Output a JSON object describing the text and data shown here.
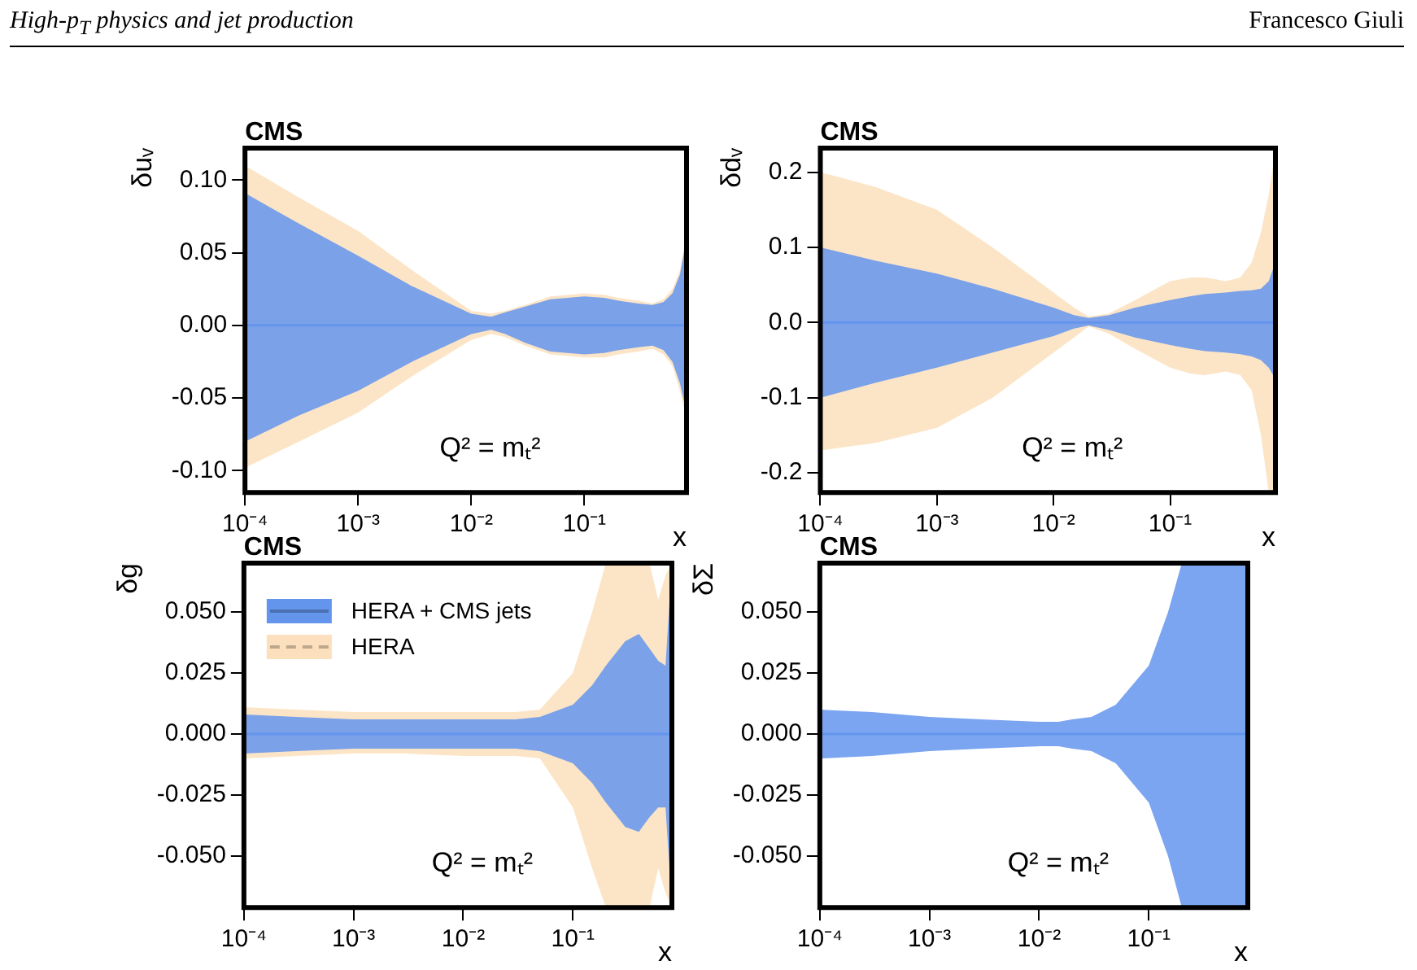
{
  "chart_data": [
    {
      "type": "line",
      "title": "CMS",
      "ylabel": "δuᵥ",
      "xlabel": "x",
      "log": "x",
      "legend": false,
      "line_style": "solid",
      "marker": "none",
      "annotations": [
        "High-p$_{T}$ physics and jet production",
        "Francesco Giuli",
        "Q² = mₜ²"
      ],
      "xlim": [
        0.0001,
        0.8
      ],
      "xticks": [
        {
          "value": 0.0001,
          "label": "10⁻⁴"
        },
        {
          "value": 0.001,
          "label": "10⁻³"
        },
        {
          "value": 0.01,
          "label": "10⁻²"
        },
        {
          "value": 0.1,
          "label": "10⁻¹"
        }
      ],
      "ylim": [
        -0.115,
        0.122
      ],
      "yticks": [
        {
          "value": -0.1,
          "label": "-0.10"
        },
        {
          "value": -0.05,
          "label": "-0.05"
        },
        {
          "value": 0,
          "label": "0.00"
        },
        {
          "value": 0.05,
          "label": "0.05"
        },
        {
          "value": 0.1,
          "label": "0.10"
        }
      ],
      "x": [
        0.0001,
        0.0003,
        0.001,
        0.003,
        0.01,
        0.015,
        0.02,
        0.03,
        0.05,
        0.1,
        0.15,
        0.2,
        0.3,
        0.4,
        0.5,
        0.6,
        0.7,
        0.8
      ],
      "series": [
        {
          "color": "#6495ed",
          "values": [
            0,
            0,
            0,
            0,
            0,
            0,
            0,
            0,
            0,
            0,
            0,
            0,
            0,
            0,
            0,
            0,
            0,
            0
          ],
          "upper": [
            0.091,
            0.07,
            0.048,
            0.027,
            0.008,
            0.006,
            0.009,
            0.013,
            0.018,
            0.02,
            0.019,
            0.017,
            0.015,
            0.014,
            0.016,
            0.022,
            0.035,
            0.06
          ],
          "lower": [
            -0.08,
            -0.062,
            -0.045,
            -0.025,
            -0.006,
            -0.003,
            -0.006,
            -0.012,
            -0.018,
            -0.02,
            -0.019,
            -0.017,
            -0.015,
            -0.014,
            -0.017,
            -0.025,
            -0.04,
            -0.06
          ]
        },
        {
          "color": "#fce0bd",
          "line_style": "dashed",
          "values": [
            null,
            null,
            null,
            null,
            null,
            null,
            null,
            null,
            null,
            null,
            null,
            null,
            null,
            null,
            null,
            null,
            null,
            null
          ],
          "upper": [
            0.11,
            0.088,
            0.065,
            0.038,
            0.01,
            0.008,
            0.01,
            0.014,
            0.02,
            0.022,
            0.021,
            0.019,
            0.017,
            0.015,
            0.018,
            0.025,
            0.038,
            0.062
          ],
          "lower": [
            -0.098,
            -0.08,
            -0.06,
            -0.035,
            -0.01,
            -0.006,
            -0.008,
            -0.014,
            -0.02,
            -0.022,
            -0.022,
            -0.02,
            -0.018,
            -0.016,
            -0.02,
            -0.028,
            -0.045,
            -0.065
          ]
        }
      ]
    },
    {
      "type": "line",
      "title": "CMS",
      "ylabel": "δdᵥ",
      "xlabel": "x",
      "log": "x",
      "legend": false,
      "line_style": "solid",
      "marker": "none",
      "annotations": [
        "Q² = mₜ²"
      ],
      "xlim": [
        0.0001,
        0.8
      ],
      "xticks": [
        {
          "value": 0.0001,
          "label": "10⁻⁴"
        },
        {
          "value": 0.001,
          "label": "10⁻³"
        },
        {
          "value": 0.01,
          "label": "10⁻²"
        },
        {
          "value": 0.1,
          "label": "10⁻¹"
        }
      ],
      "ylim": [
        -0.226,
        0.232
      ],
      "yticks": [
        {
          "value": -0.2,
          "label": "-0.2"
        },
        {
          "value": -0.1,
          "label": "-0.1"
        },
        {
          "value": 0,
          "label": "0.0"
        },
        {
          "value": 0.1,
          "label": "0.1"
        },
        {
          "value": 0.2,
          "label": "0.2"
        }
      ],
      "x": [
        0.0001,
        0.0003,
        0.001,
        0.003,
        0.01,
        0.015,
        0.02,
        0.03,
        0.05,
        0.1,
        0.15,
        0.2,
        0.3,
        0.4,
        0.5,
        0.6,
        0.7,
        0.8
      ],
      "series": [
        {
          "color": "#6495ed",
          "values": [
            0,
            0,
            0,
            0,
            0,
            0,
            0,
            0,
            0,
            0,
            0,
            0,
            0,
            0,
            0,
            0,
            0,
            0
          ],
          "upper": [
            0.1,
            0.082,
            0.065,
            0.045,
            0.02,
            0.01,
            0.006,
            0.01,
            0.02,
            0.03,
            0.035,
            0.038,
            0.04,
            0.042,
            0.043,
            0.045,
            0.055,
            0.08
          ],
          "lower": [
            -0.1,
            -0.08,
            -0.06,
            -0.04,
            -0.018,
            -0.008,
            -0.004,
            -0.01,
            -0.02,
            -0.03,
            -0.035,
            -0.038,
            -0.04,
            -0.042,
            -0.045,
            -0.05,
            -0.06,
            -0.075
          ]
        },
        {
          "color": "#fce0bd",
          "line_style": "dashed",
          "values": [
            null,
            null,
            null,
            null,
            null,
            null,
            null,
            null,
            null,
            null,
            null,
            null,
            null,
            null,
            null,
            null,
            null,
            null
          ],
          "upper": [
            0.2,
            0.18,
            0.15,
            0.1,
            0.04,
            0.02,
            0.008,
            0.012,
            0.03,
            0.055,
            0.06,
            0.06,
            0.055,
            0.06,
            0.08,
            0.12,
            0.17,
            0.23
          ],
          "lower": [
            -0.17,
            -0.16,
            -0.14,
            -0.1,
            -0.04,
            -0.02,
            -0.005,
            -0.015,
            -0.035,
            -0.06,
            -0.068,
            -0.07,
            -0.065,
            -0.07,
            -0.09,
            -0.15,
            -0.225,
            -0.225
          ]
        }
      ]
    },
    {
      "type": "line",
      "title": "CMS",
      "ylabel": "δg",
      "xlabel": "x",
      "log": "x",
      "legend": "top left",
      "line_style": "solid",
      "marker": "none",
      "annotations": [
        "Q² = mₜ²"
      ],
      "xlim": [
        0.0001,
        0.8
      ],
      "xticks": [
        {
          "value": 0.0001,
          "label": "10⁻⁴"
        },
        {
          "value": 0.001,
          "label": "10⁻³"
        },
        {
          "value": 0.01,
          "label": "10⁻²"
        },
        {
          "value": 0.1,
          "label": "10⁻¹"
        }
      ],
      "ylim": [
        -0.071,
        0.07
      ],
      "yticks": [
        {
          "value": -0.05,
          "label": "-0.050"
        },
        {
          "value": -0.025,
          "label": "-0.025"
        },
        {
          "value": 0,
          "label": "0.000"
        },
        {
          "value": 0.025,
          "label": "0.025"
        },
        {
          "value": 0.05,
          "label": "0.050"
        }
      ],
      "x": [
        0.0001,
        0.0003,
        0.001,
        0.003,
        0.01,
        0.015,
        0.02,
        0.03,
        0.05,
        0.1,
        0.15,
        0.2,
        0.3,
        0.4,
        0.5,
        0.6,
        0.7,
        0.8
      ],
      "series": [
        {
          "name": "HERA + CMS jets",
          "color": "#6495ed",
          "values": [
            0,
            0,
            0,
            0,
            0,
            0,
            0,
            0,
            0,
            0,
            0,
            0,
            0,
            0,
            0,
            0,
            0,
            0
          ],
          "upper": [
            0.008,
            0.007,
            0.006,
            0.006,
            0.006,
            0.006,
            0.006,
            0.006,
            0.007,
            0.012,
            0.02,
            0.028,
            0.038,
            0.041,
            0.035,
            0.03,
            0.028,
            0.07
          ],
          "lower": [
            -0.008,
            -0.007,
            -0.006,
            -0.006,
            -0.006,
            -0.006,
            -0.006,
            -0.006,
            -0.007,
            -0.012,
            -0.02,
            -0.028,
            -0.038,
            -0.04,
            -0.034,
            -0.03,
            -0.03,
            -0.07
          ]
        },
        {
          "name": "HERA",
          "color": "#fce0bd",
          "line_style": "dashed",
          "values": [
            null,
            null,
            null,
            null,
            null,
            null,
            null,
            null,
            null,
            null,
            null,
            null,
            null,
            null,
            null,
            null,
            null,
            null
          ],
          "upper": [
            0.011,
            0.01,
            0.009,
            0.009,
            0.009,
            0.009,
            0.009,
            0.009,
            0.01,
            0.025,
            0.05,
            0.07,
            0.07,
            0.07,
            0.07,
            0.055,
            0.065,
            0.07
          ],
          "lower": [
            -0.01,
            -0.009,
            -0.008,
            -0.008,
            -0.009,
            -0.009,
            -0.009,
            -0.009,
            -0.01,
            -0.03,
            -0.055,
            -0.071,
            -0.071,
            -0.071,
            -0.071,
            -0.055,
            -0.065,
            -0.071
          ]
        }
      ]
    },
    {
      "type": "line",
      "title": "CMS",
      "ylabel": "δΣ",
      "xlabel": "x",
      "log": "x",
      "legend": false,
      "line_style": "solid",
      "marker": "none",
      "annotations": [
        "Q² = mₜ²"
      ],
      "xlim": [
        0.0001,
        0.8
      ],
      "xticks": [
        {
          "value": 0.0001,
          "label": "10⁻⁴"
        },
        {
          "value": 0.001,
          "label": "10⁻³"
        },
        {
          "value": 0.01,
          "label": "10⁻²"
        },
        {
          "value": 0.1,
          "label": "10⁻¹"
        }
      ],
      "ylim": [
        -0.071,
        0.07
      ],
      "yticks": [
        {
          "value": -0.05,
          "label": "-0.050"
        },
        {
          "value": -0.025,
          "label": "-0.025"
        },
        {
          "value": 0,
          "label": "0.000"
        },
        {
          "value": 0.025,
          "label": "0.025"
        },
        {
          "value": 0.05,
          "label": "0.050"
        }
      ],
      "x": [
        0.0001,
        0.0003,
        0.001,
        0.003,
        0.01,
        0.015,
        0.02,
        0.03,
        0.05,
        0.1,
        0.15,
        0.2,
        0.3,
        0.4,
        0.5,
        0.6,
        0.7,
        0.8
      ],
      "series": [
        {
          "color": "#6495ed",
          "values": [
            0,
            0,
            0,
            0,
            0,
            0,
            0,
            0,
            0,
            0,
            0,
            0,
            0,
            0,
            0,
            0,
            0,
            0
          ],
          "upper": [
            0.01,
            0.009,
            0.007,
            0.006,
            0.005,
            0.005,
            0.006,
            0.007,
            0.012,
            0.028,
            0.05,
            0.07,
            0.07,
            0.07,
            0.07,
            0.07,
            0.07,
            0.07
          ],
          "lower": [
            -0.01,
            -0.009,
            -0.007,
            -0.006,
            -0.005,
            -0.005,
            -0.006,
            -0.007,
            -0.012,
            -0.028,
            -0.05,
            -0.071,
            -0.071,
            -0.071,
            -0.071,
            -0.071,
            -0.071,
            -0.071
          ]
        }
      ]
    }
  ]
}
